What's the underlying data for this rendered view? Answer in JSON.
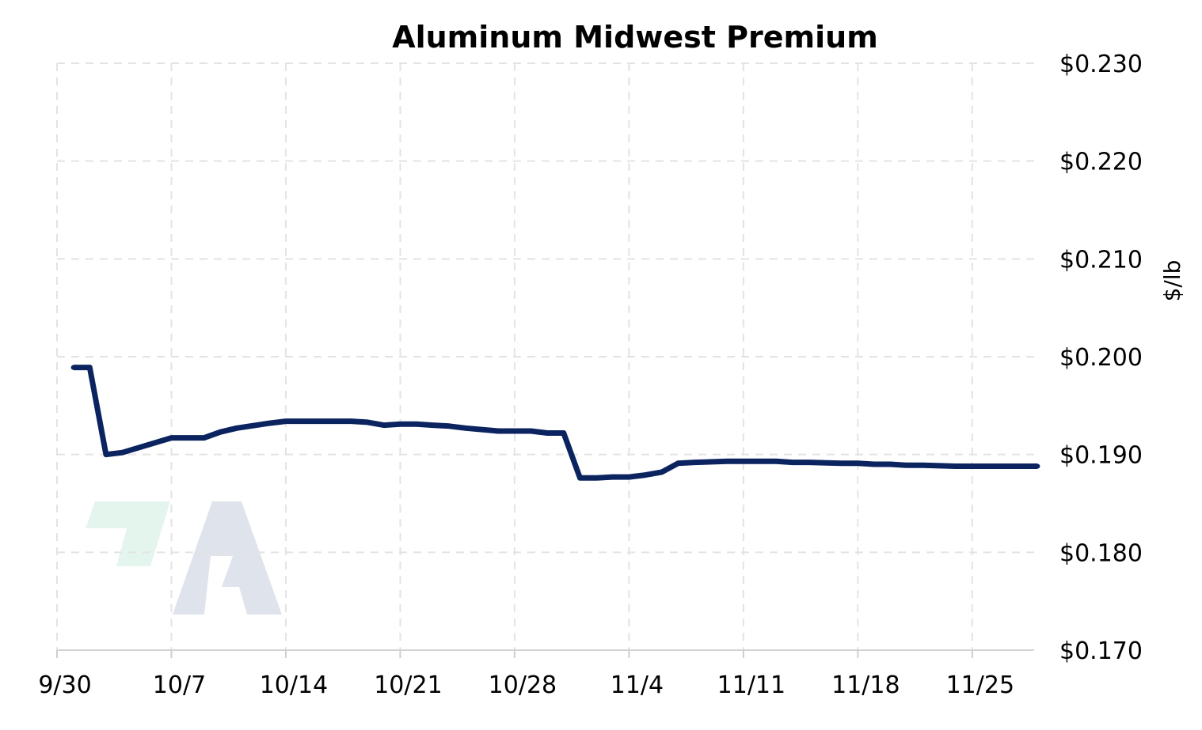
{
  "chart_data": {
    "type": "line",
    "title": "Aluminum Midwest Premium",
    "xlabel": "",
    "ylabel": "$/lb",
    "x_ticks": [
      "9/30",
      "10/7",
      "10/14",
      "10/21",
      "10/28",
      "11/4",
      "11/11",
      "11/18",
      "11/25"
    ],
    "y_ticks": [
      "$0.230",
      "$0.220",
      "$0.210",
      "$0.200",
      "$0.190",
      "$0.180",
      "$0.170"
    ],
    "ylim": [
      0.17,
      0.23
    ],
    "xlim": [
      "9/30",
      "11/30"
    ],
    "grid": true,
    "legend": "none",
    "line_color": "#0b2460",
    "watermark_colors": [
      "#e4f5ee",
      "#dfe4ec"
    ],
    "series": [
      {
        "x": [
          "10/1",
          "10/2",
          "10/3",
          "10/4",
          "10/6",
          "10/7",
          "10/9",
          "10/10",
          "10/11",
          "10/13",
          "10/14",
          "10/15",
          "10/16",
          "10/17",
          "10/18",
          "10/19",
          "10/20",
          "10/21",
          "10/22",
          "10/23",
          "10/24",
          "10/25",
          "10/27",
          "10/28",
          "10/29",
          "10/30",
          "10/31",
          "11/1",
          "11/2",
          "11/3",
          "11/4",
          "11/5",
          "11/6",
          "11/7",
          "11/8",
          "11/10",
          "11/11",
          "11/12",
          "11/13",
          "11/14",
          "11/15",
          "11/17",
          "11/18",
          "11/19",
          "11/20",
          "11/21",
          "11/22",
          "11/24",
          "11/25",
          "11/26",
          "11/27",
          "11/28",
          "11/29"
        ],
        "values": [
          0.1989,
          0.1989,
          0.19,
          0.1902,
          0.1912,
          0.1917,
          0.1917,
          0.1923,
          0.1927,
          0.1932,
          0.1934,
          0.1934,
          0.1934,
          0.1934,
          0.1934,
          0.1933,
          0.193,
          0.1931,
          0.1931,
          0.193,
          0.1929,
          0.1927,
          0.1924,
          0.1924,
          0.1924,
          0.1922,
          0.1922,
          0.1876,
          0.1876,
          0.1877,
          0.1877,
          0.1879,
          0.1882,
          0.1891,
          0.1892,
          0.1893,
          0.1893,
          0.1893,
          0.1893,
          0.1892,
          0.1892,
          0.1891,
          0.1891,
          0.189,
          0.189,
          0.1889,
          0.1889,
          0.1888,
          0.1888,
          0.1888,
          0.1888,
          0.1888,
          0.1888
        ]
      }
    ]
  }
}
